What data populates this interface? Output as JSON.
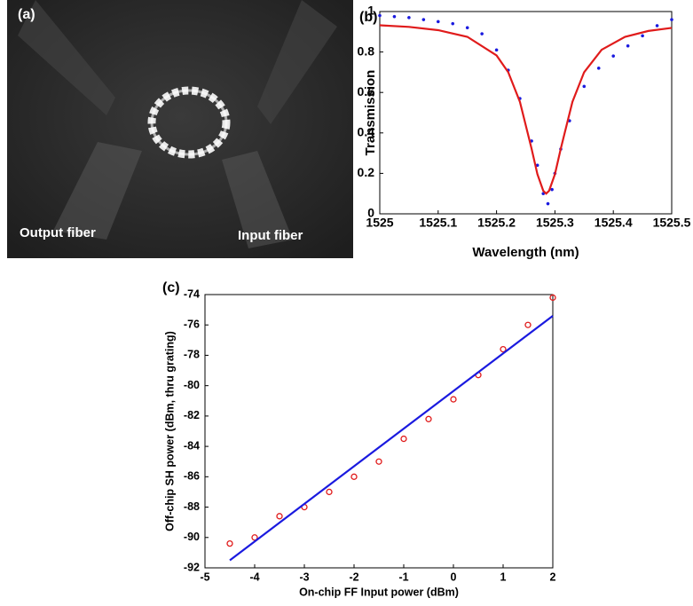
{
  "image_panel": {
    "panel_label": "(a)",
    "annotations": [
      "Output fiber",
      "Input fiber"
    ]
  },
  "chart_data": [
    {
      "type": "scatter",
      "panel_label": "(b)",
      "xlabel": "Wavelength (nm)",
      "ylabel": "Transmission",
      "xlim": [
        1525,
        1525.5
      ],
      "xticks": [
        1525,
        1525.1,
        1525.2,
        1525.3,
        1525.4,
        1525.5
      ],
      "ylim": [
        0,
        1
      ],
      "yticks": [
        0,
        0.2,
        0.4,
        0.6,
        0.8,
        1
      ],
      "series": [
        {
          "color": "#1a1adf",
          "style": "markers",
          "x": [
            1525,
            1525.025,
            1525.05,
            1525.075,
            1525.1,
            1525.125,
            1525.15,
            1525.175,
            1525.2,
            1525.22,
            1525.24,
            1525.26,
            1525.27,
            1525.28,
            1525.288,
            1525.295,
            1525.3,
            1525.31,
            1525.325,
            1525.35,
            1525.375,
            1525.4,
            1525.425,
            1525.45,
            1525.475,
            1525.5
          ],
          "values": [
            0.98,
            0.975,
            0.97,
            0.96,
            0.95,
            0.94,
            0.92,
            0.89,
            0.81,
            0.71,
            0.57,
            0.36,
            0.24,
            0.1,
            0.05,
            0.12,
            0.2,
            0.32,
            0.46,
            0.63,
            0.72,
            0.78,
            0.83,
            0.88,
            0.93,
            0.96
          ]
        },
        {
          "color": "#e01b1b",
          "style": "line",
          "x": [
            1525,
            1525.05,
            1525.1,
            1525.15,
            1525.2,
            1525.22,
            1525.24,
            1525.26,
            1525.27,
            1525.28,
            1525.285,
            1525.29,
            1525.3,
            1525.31,
            1525.33,
            1525.35,
            1525.38,
            1525.42,
            1525.46,
            1525.5
          ],
          "values": [
            0.932,
            0.924,
            0.908,
            0.875,
            0.783,
            0.7,
            0.554,
            0.322,
            0.196,
            0.114,
            0.1,
            0.114,
            0.196,
            0.322,
            0.554,
            0.7,
            0.811,
            0.875,
            0.904,
            0.919
          ]
        }
      ]
    },
    {
      "type": "scatter",
      "panel_label": "(c)",
      "xlabel": "On-chip FF Input power (dBm)",
      "ylabel": "Off-chip SH power (dBm, thru grating)",
      "xlim": [
        -5,
        2
      ],
      "xticks": [
        -5,
        -4,
        -3,
        -2,
        -1,
        0,
        1,
        2
      ],
      "ylim": [
        -92,
        -74
      ],
      "yticks": [
        -92,
        -90,
        -88,
        -86,
        -84,
        -82,
        -80,
        -78,
        -76,
        -74
      ],
      "series": [
        {
          "color": "#e01b1b",
          "style": "circles",
          "x": [
            -4.5,
            -4,
            -3.5,
            -3,
            -2.5,
            -2,
            -1.5,
            -1,
            -0.5,
            0,
            0.5,
            1,
            1.5,
            2
          ],
          "values": [
            -90.4,
            -90,
            -88.6,
            -88,
            -87,
            -86,
            -85,
            -83.5,
            -82.2,
            -80.9,
            -79.3,
            -77.6,
            -76,
            -74.2
          ]
        },
        {
          "color": "#1a1adf",
          "style": "line",
          "x": [
            -4.5,
            2
          ],
          "values": [
            -91.5,
            -75.4
          ]
        }
      ]
    }
  ]
}
